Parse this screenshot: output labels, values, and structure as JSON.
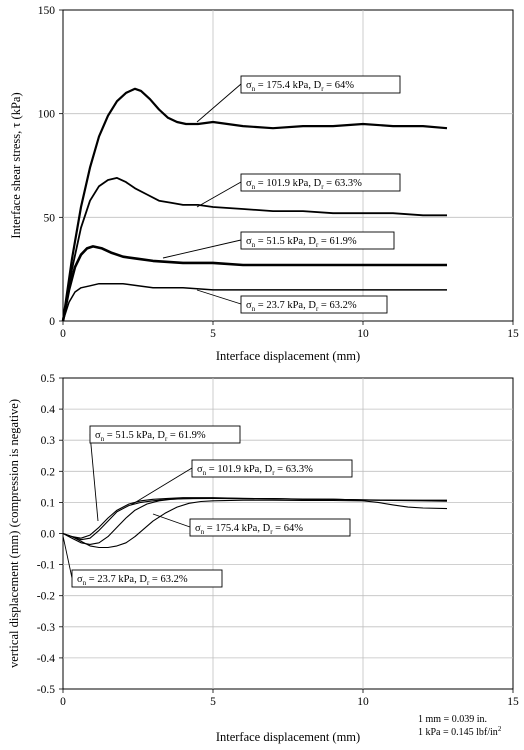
{
  "chart_data": [
    {
      "type": "line",
      "xlabel": "Interface displacement (mm)",
      "ylabel": "Interface shear stress, τ (kPa)",
      "xlim": [
        0,
        15
      ],
      "ylim": [
        0,
        150
      ],
      "xticks": [
        "0",
        "5",
        "10",
        "15"
      ],
      "yticks": [
        "0",
        "50",
        "100",
        "150"
      ],
      "grid": true,
      "series": [
        {
          "name": "σn = 175.4 kPa, Dr = 64%",
          "label_sigma": " = 175.4 kPa, D",
          "label_end": " = 64%",
          "x": [
            0,
            0.3,
            0.6,
            0.9,
            1.2,
            1.5,
            1.8,
            2.1,
            2.4,
            2.6,
            2.9,
            3.2,
            3.5,
            3.8,
            4.1,
            4.5,
            5,
            6,
            7,
            8,
            9,
            10,
            11,
            12,
            12.8
          ],
          "y": [
            0,
            30,
            55,
            74,
            89,
            99,
            106,
            110,
            112,
            111,
            107,
            102,
            98,
            96,
            95,
            95,
            96,
            94,
            93,
            94,
            94,
            95,
            94,
            94,
            93
          ]
        },
        {
          "name": "σn = 101.9 kPa, Dr = 63.3%",
          "label_sigma": " = 101.9 kPa, D",
          "label_end": " = 63.3%",
          "x": [
            0,
            0.3,
            0.6,
            0.9,
            1.2,
            1.5,
            1.8,
            2.1,
            2.4,
            2.8,
            3.2,
            3.6,
            4,
            4.5,
            5,
            6,
            7,
            8,
            9,
            10,
            11,
            12,
            12.8
          ],
          "y": [
            0,
            25,
            45,
            58,
            65,
            68,
            69,
            67,
            64,
            61,
            58,
            57,
            56,
            56,
            55,
            54,
            53,
            53,
            52,
            52,
            52,
            51,
            51
          ]
        },
        {
          "name": "σn = 51.5 kPa, Dr = 61.9%",
          "label_sigma": " = 51.5 kPa, D",
          "label_end": " = 61.9%",
          "x": [
            0,
            0.2,
            0.4,
            0.6,
            0.8,
            1,
            1.3,
            1.6,
            2,
            2.5,
            3,
            4,
            5,
            6,
            7,
            8,
            9,
            10,
            11,
            12,
            12.8
          ],
          "y": [
            0,
            15,
            26,
            32,
            35,
            36,
            35,
            33,
            31,
            30,
            29,
            28,
            28,
            27,
            27,
            27,
            27,
            27,
            27,
            27,
            27
          ]
        },
        {
          "name": "σn = 23.7 kPa, Dr = 63.2%",
          "label_sigma": " = 23.7 kPa, D",
          "label_end": " = 63.2%",
          "x": [
            0,
            0.2,
            0.4,
            0.6,
            0.9,
            1.2,
            1.6,
            2,
            2.5,
            3,
            4,
            5,
            6,
            7,
            8,
            9,
            10,
            11,
            12,
            12.8
          ],
          "y": [
            0,
            9,
            14,
            16,
            17,
            18,
            18,
            18,
            17,
            16,
            16,
            15,
            15,
            15,
            15,
            15,
            15,
            15,
            15,
            15
          ]
        }
      ]
    },
    {
      "type": "line",
      "xlabel": "Interface displacement (mm)",
      "ylabel": "vertical displacement (mm) (compression is negative)",
      "xlim": [
        0,
        15
      ],
      "ylim": [
        -0.5,
        0.5
      ],
      "xticks": [
        "0",
        "5",
        "10",
        "15"
      ],
      "yticks": [
        "-0.5",
        "-0.4",
        "-0.3",
        "-0.2",
        "-0.1",
        "0.0",
        "0.1",
        "0.2",
        "0.3",
        "0.4",
        "0.5"
      ],
      "grid": true,
      "series": [
        {
          "name": "σn = 23.7 kPa, Dr = 63.2%",
          "label_sigma": " = 23.7 kPa, D",
          "label_end": " = 63.2%",
          "x": [
            0,
            0.3,
            0.6,
            0.9,
            1.2,
            1.5,
            1.8,
            2.2,
            2.6,
            3,
            3.5,
            4,
            5,
            6,
            7,
            8,
            9,
            10,
            11,
            12,
            12.8
          ],
          "y": [
            0,
            -0.01,
            -0.015,
            -0.005,
            0.02,
            0.05,
            0.075,
            0.095,
            0.105,
            0.11,
            0.113,
            0.115,
            0.115,
            0.113,
            0.112,
            0.11,
            0.11,
            0.108,
            0.107,
            0.106,
            0.106
          ]
        },
        {
          "name": "σn = 51.5 kPa, Dr = 61.9%",
          "label_sigma": " = 51.5 kPa, D",
          "label_end": " = 61.9%",
          "x": [
            0,
            0.3,
            0.6,
            0.9,
            1.2,
            1.5,
            1.8,
            2.2,
            2.6,
            3,
            3.5,
            4,
            5,
            6,
            7,
            8,
            9,
            10,
            11,
            12,
            12.8
          ],
          "y": [
            0,
            -0.01,
            -0.02,
            -0.015,
            0.01,
            0.04,
            0.07,
            0.09,
            0.1,
            0.105,
            0.11,
            0.112,
            0.114,
            0.113,
            0.112,
            0.11,
            0.11,
            0.108,
            0.107,
            0.107,
            0.107
          ]
        },
        {
          "name": "σn = 101.9 kPa, Dr = 63.3%",
          "label_sigma": " = 101.9 kPa, D",
          "label_end": " = 63.3%",
          "x": [
            0,
            0.3,
            0.6,
            0.9,
            1.2,
            1.5,
            1.8,
            2.1,
            2.4,
            2.8,
            3.2,
            3.6,
            4,
            5,
            6,
            7,
            8,
            9,
            10,
            11,
            12,
            12.8
          ],
          "y": [
            0,
            -0.015,
            -0.03,
            -0.035,
            -0.03,
            -0.01,
            0.02,
            0.05,
            0.075,
            0.095,
            0.105,
            0.11,
            0.112,
            0.113,
            0.112,
            0.112,
            0.111,
            0.11,
            0.108,
            0.106,
            0.105,
            0.104
          ]
        },
        {
          "name": "σn = 175.4 kPa, Dr = 64%",
          "label_sigma": " = 175.4 kPa, D",
          "label_end": " = 64%",
          "x": [
            0,
            0.3,
            0.6,
            0.9,
            1.2,
            1.5,
            1.8,
            2.1,
            2.4,
            2.7,
            3,
            3.4,
            3.8,
            4.2,
            4.6,
            5,
            6,
            7,
            8,
            9,
            10,
            10.5,
            11,
            11.5,
            12,
            12.8
          ],
          "y": [
            0,
            -0.01,
            -0.025,
            -0.04,
            -0.045,
            -0.045,
            -0.04,
            -0.03,
            -0.01,
            0.015,
            0.04,
            0.065,
            0.085,
            0.097,
            0.103,
            0.105,
            0.107,
            0.107,
            0.106,
            0.106,
            0.105,
            0.1,
            0.092,
            0.085,
            0.082,
            0.08
          ]
        }
      ]
    }
  ],
  "notes": [
    "1 mm = 0.039 in.",
    "1 kPa = 0.145 lbf/in",
    "2"
  ]
}
